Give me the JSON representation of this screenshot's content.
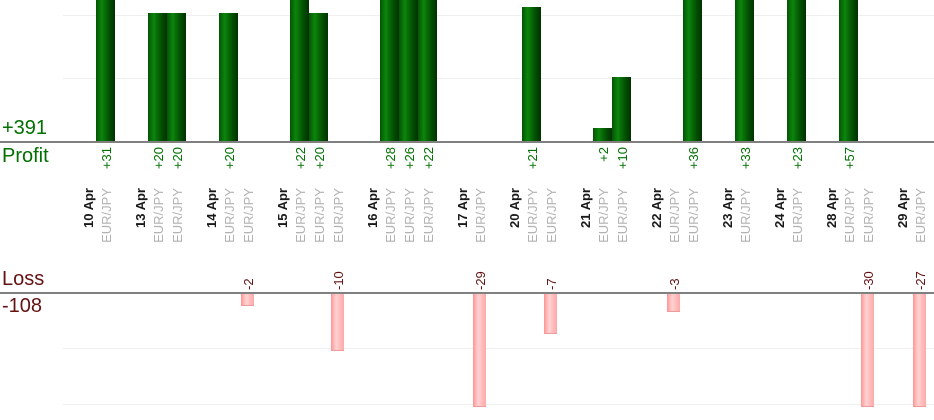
{
  "chart_data": {
    "type": "bar",
    "description": "Per-trade profit and loss report chart",
    "grid_interval": 10,
    "axis": {
      "profit_total_label": "+391",
      "profit_label": "Profit",
      "loss_label": "Loss",
      "loss_total_label": "-108"
    },
    "groups": [
      {
        "date": "10 Apr",
        "trades": [
          {
            "symbol": "EUR/JPY",
            "value": 31
          }
        ]
      },
      {
        "date": "13 Apr",
        "trades": [
          {
            "symbol": "EUR/JPY",
            "value": 20
          },
          {
            "symbol": "EUR/JPY",
            "value": 20
          }
        ]
      },
      {
        "date": "14 Apr",
        "trades": [
          {
            "symbol": "EUR/JPY",
            "value": 20
          },
          {
            "symbol": "EUR/JPY",
            "value": -2
          }
        ]
      },
      {
        "date": "15 Apr",
        "trades": [
          {
            "symbol": "EUR/JPY",
            "value": 22
          },
          {
            "symbol": "EUR/JPY",
            "value": 20
          },
          {
            "symbol": "EUR/JPY",
            "value": -10
          }
        ]
      },
      {
        "date": "16 Apr",
        "trades": [
          {
            "symbol": "EUR/JPY",
            "value": 28
          },
          {
            "symbol": "EUR/JPY",
            "value": 26
          },
          {
            "symbol": "EUR/JPY",
            "value": 22
          }
        ]
      },
      {
        "date": "17 Apr",
        "trades": [
          {
            "symbol": "EUR/JPY",
            "value": -29
          }
        ]
      },
      {
        "date": "20 Apr",
        "trades": [
          {
            "symbol": "EUR/JPY",
            "value": 21
          },
          {
            "symbol": "EUR/JPY",
            "value": -7
          }
        ]
      },
      {
        "date": "21 Apr",
        "trades": [
          {
            "symbol": "EUR/JPY",
            "value": 2
          },
          {
            "symbol": "EUR/JPY",
            "value": 10
          }
        ]
      },
      {
        "date": "22 Apr",
        "trades": [
          {
            "symbol": "EUR/JPY",
            "value": -3
          },
          {
            "symbol": "EUR/JPY",
            "value": 36
          }
        ]
      },
      {
        "date": "23 Apr",
        "trades": [
          {
            "symbol": "EUR/JPY",
            "value": 33
          }
        ]
      },
      {
        "date": "24 Apr",
        "trades": [
          {
            "symbol": "EUR/JPY",
            "value": 23
          }
        ]
      },
      {
        "date": "28 Apr",
        "trades": [
          {
            "symbol": "EUR/JPY",
            "value": 57
          },
          {
            "symbol": "EUR/JPY",
            "value": -30
          }
        ]
      },
      {
        "date": "29 Apr",
        "trades": [
          {
            "symbol": "EUR/JPY",
            "value": -27
          }
        ]
      }
    ],
    "colors": {
      "profit_text": "#007000",
      "loss_text": "#641111",
      "date_text": "#1a1a1a",
      "symbol_text": "#b2b2b2",
      "profit_bar": [
        "#045404",
        "#0c850c",
        "#025002",
        "#013101"
      ],
      "loss_bar": [
        "#ff9494",
        "#ffd2d2",
        "#ffa8a8"
      ],
      "baseline": "#808080",
      "gridline": "#efefef"
    }
  }
}
